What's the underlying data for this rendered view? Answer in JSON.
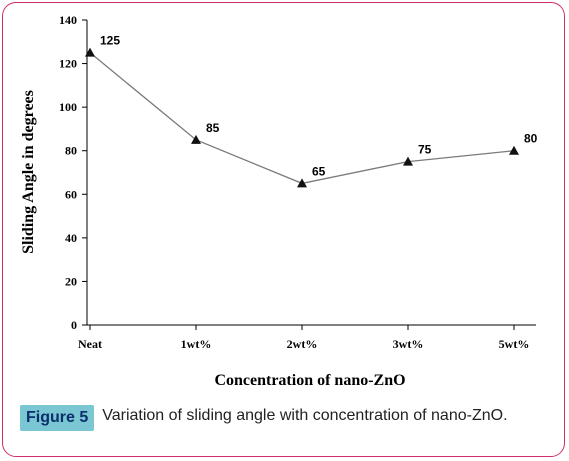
{
  "chart_data": {
    "type": "line",
    "categories": [
      "Neat",
      "1wt%",
      "2wt%",
      "3wt%",
      "5wt%"
    ],
    "series": [
      {
        "values": [
          125,
          85,
          65,
          75,
          80
        ]
      }
    ],
    "data_labels": [
      "125",
      "85",
      "65",
      "75",
      "80"
    ],
    "xlabel": "Concentration of nano-ZnO",
    "ylabel": "Sliding Angle in degrees",
    "ylim": [
      0,
      140
    ],
    "yticks": [
      "0",
      "20",
      "40",
      "60",
      "80",
      "100",
      "120",
      "140"
    ],
    "grid": false,
    "marker": "triangle",
    "line_color": "#7a7a7a",
    "marker_color": "#111111"
  },
  "caption": {
    "label": "Figure 5",
    "text": "Variation of sliding angle with concentration of nano-ZnO."
  }
}
